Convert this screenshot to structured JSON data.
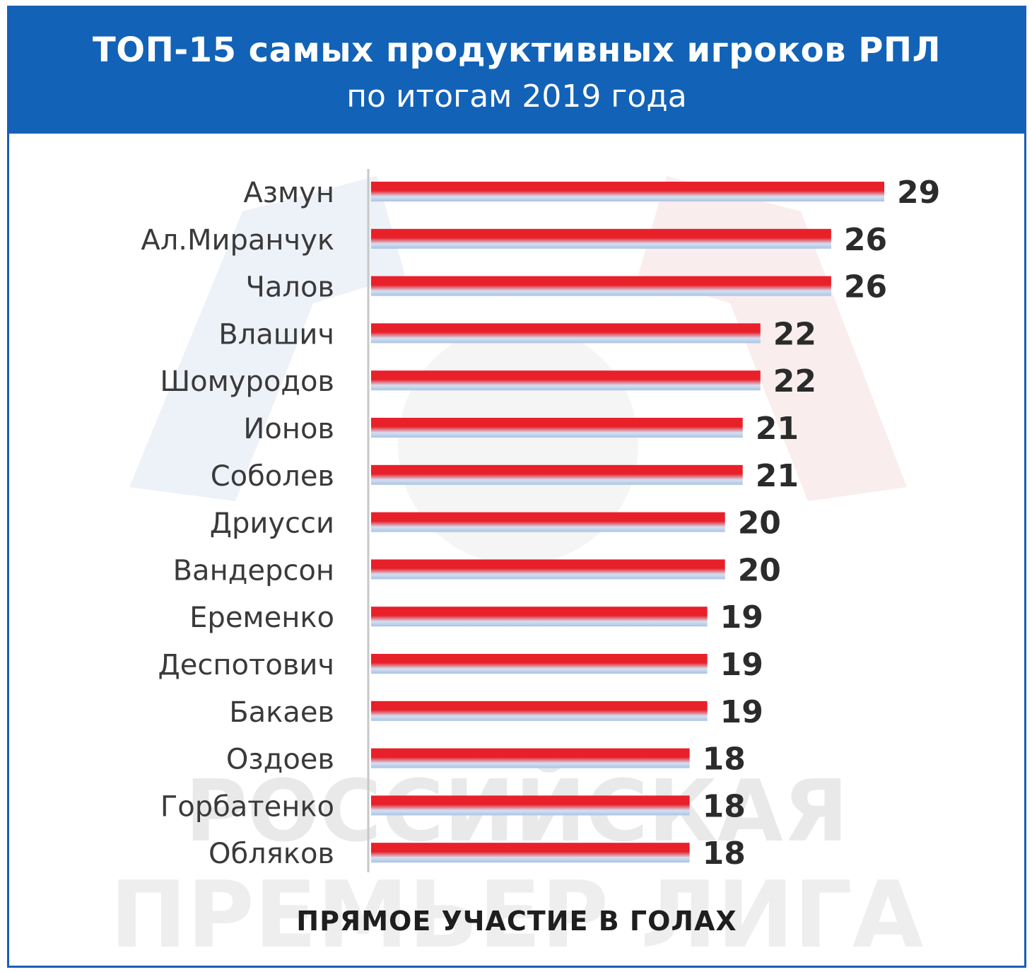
{
  "header": {
    "title": "ТОП-15 самых продуктивных игроков РПЛ",
    "subtitle": "по итогам 2019 года"
  },
  "footer": {
    "label": "ПРЯМОЕ УЧАСТИЕ В ГОЛАХ"
  },
  "watermark": {
    "line1": "РОССИЙСКАЯ",
    "line2": "ПРЕМЬЕР ЛИГА"
  },
  "colors": {
    "header_bg": "#1262b7",
    "bar_red": "#e8202a",
    "bar_blue": "#a9c4e6",
    "value_text": "#2b2b2b",
    "label_text": "#3a3a3a"
  },
  "chart_data": {
    "type": "bar",
    "orientation": "horizontal",
    "title": "ТОП-15 самых продуктивных игроков РПЛ",
    "subtitle": "по итогам 2019 года",
    "xlabel": "ПРЯМОЕ УЧАСТИЕ В ГОЛАХ",
    "ylabel": "",
    "categories": [
      "Азмун",
      "Ал.Миранчук",
      "Чалов",
      "Влашич",
      "Шомуродов",
      "Ионов",
      "Соболев",
      "Дриусси",
      "Вандерсон",
      "Еременко",
      "Деспотович",
      "Бакаев",
      "Оздоев",
      "Горбатенко",
      "Обляков"
    ],
    "values": [
      29,
      26,
      26,
      22,
      22,
      21,
      21,
      20,
      20,
      19,
      19,
      19,
      18,
      18,
      18
    ],
    "xlim": [
      0,
      29
    ],
    "grid": false,
    "legend": "none",
    "data_labels": true
  }
}
